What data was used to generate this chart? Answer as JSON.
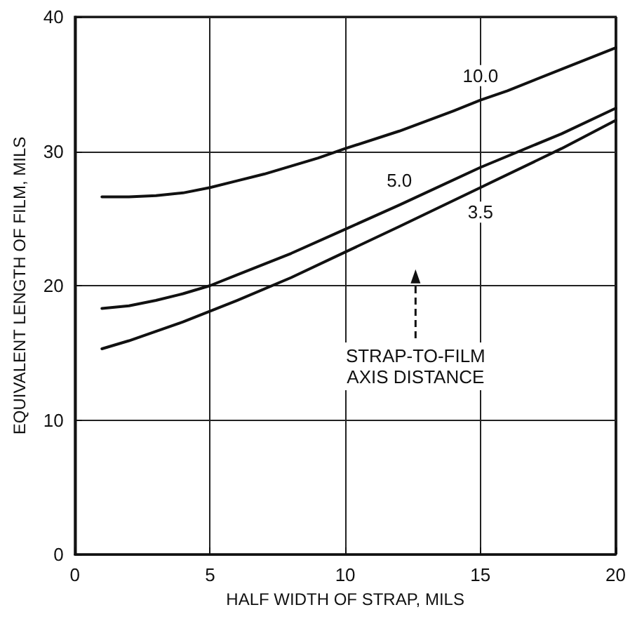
{
  "chart_data": {
    "type": "line",
    "xlabel": "HALF WIDTH OF STRAP, MILS",
    "ylabel": "EQUIVALENT LENGTH OF FILM, MILS",
    "series": [
      {
        "name": "10.0",
        "color": "#111111",
        "x": [
          1,
          2,
          3,
          4,
          5,
          6,
          7,
          8,
          9,
          10,
          12,
          14,
          15,
          16,
          18,
          20
        ],
        "values": [
          26.6,
          26.6,
          26.7,
          26.9,
          27.3,
          27.8,
          28.3,
          28.9,
          29.5,
          30.2,
          31.5,
          33.0,
          33.8,
          34.5,
          36.1,
          37.7
        ]
      },
      {
        "name": "5.0",
        "color": "#111111",
        "x": [
          1,
          2,
          3,
          4,
          5,
          6,
          7,
          8,
          10,
          12,
          15,
          18,
          20
        ],
        "values": [
          18.3,
          18.5,
          18.9,
          19.4,
          20.0,
          20.8,
          21.6,
          22.4,
          24.2,
          26.0,
          28.8,
          31.3,
          33.2
        ]
      },
      {
        "name": "3.5",
        "color": "#111111",
        "x": [
          1,
          2,
          3,
          4,
          5,
          6,
          8,
          10,
          12,
          15,
          18,
          20
        ],
        "values": [
          15.3,
          15.9,
          16.6,
          17.3,
          18.1,
          18.9,
          20.6,
          22.5,
          24.4,
          27.3,
          30.2,
          32.3
        ]
      }
    ],
    "annotations": [
      "STRAP-TO-FILM\nAXIS DISTANCE"
    ],
    "xlim": [
      0,
      20
    ],
    "xticks": [
      0,
      5,
      10,
      15,
      20
    ],
    "ylim": [
      0,
      40
    ],
    "yticks": [
      0,
      10,
      20,
      30,
      40
    ],
    "grid": true,
    "legend": false,
    "marker": "none",
    "line_style": "solid"
  }
}
